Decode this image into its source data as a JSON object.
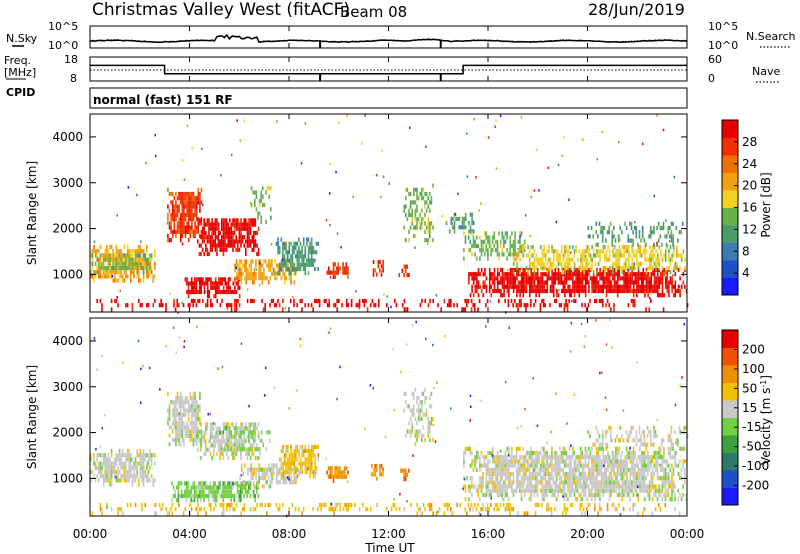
{
  "header": {
    "title": "Christmas Valley West (fitACF)",
    "beam": "Beam 08",
    "date": "28/Jun/2019"
  },
  "labels": {
    "nsky": "N.Sky",
    "freq_line1": "Freq.",
    "freq_line2": "[MHz]",
    "cpid": "CPID",
    "nsearch": "N.Search",
    "nave": "Nave",
    "mode": "normal (fast) 151 RF",
    "noise_ticks_left": [
      "10^5",
      "10^0"
    ],
    "noise_ticks_right": [
      "10^5",
      "10^0"
    ],
    "freq_ticks": [
      "18",
      "8"
    ],
    "nave_ticks": [
      "60",
      "0"
    ]
  },
  "colors": {
    "power": [
      "#1a1aff",
      "#2050c8",
      "#3c7ab4",
      "#4a9a6a",
      "#6ab04a",
      "#f0d020",
      "#f0a010",
      "#f07000",
      "#f03000",
      "#e80000"
    ],
    "velocity": [
      "#1a1aff",
      "#2050c8",
      "#2c7a6a",
      "#3aa040",
      "#70d040",
      "#c8c8c8",
      "#f0c000",
      "#f09000",
      "#f05000",
      "#e80000"
    ],
    "ground": "#c8c8c8"
  },
  "chart_data": [
    {
      "type": "line",
      "panel": "noise",
      "series": [
        {
          "name": "N.Sky",
          "style": "solid"
        },
        {
          "name": "N.Search",
          "style": "dotted"
        }
      ],
      "x": [
        "00:00",
        "04:00",
        "08:00",
        "12:00",
        "16:00",
        "20:00",
        "00:00"
      ],
      "ylim_labels": [
        "10^0",
        "10^5"
      ]
    },
    {
      "type": "line",
      "panel": "frequency_nave",
      "xh": [
        0,
        3,
        3,
        9.2,
        9.2,
        14,
        14,
        15,
        15,
        24
      ],
      "freq_mhz": [
        14.5,
        14.5,
        11,
        11,
        11,
        11,
        11,
        11,
        14.5,
        14.5
      ],
      "freq_ylim": [
        8,
        18
      ],
      "nave_ylim": [
        0,
        60
      ]
    },
    {
      "type": "heatmap",
      "panel": "power",
      "xlabel": "",
      "ylabel": "Slant Range [km]",
      "yticks": [
        1000,
        2000,
        3000,
        4000
      ],
      "ylim": [
        180,
        4500
      ],
      "xlim_hours": [
        0,
        24
      ],
      "colorbar_label": "Power [dB]",
      "colorbar_ticks": [
        "4",
        "8",
        "12",
        "16",
        "20",
        "24",
        "28"
      ],
      "regions": [
        {
          "t0": 0.0,
          "t1": 2.6,
          "r0": 820,
          "r1": 1560,
          "level": 6,
          "density": 0.82
        },
        {
          "t0": 0.0,
          "t1": 2.6,
          "r0": 1000,
          "r1": 1400,
          "level": 4,
          "density": 0.6
        },
        {
          "t0": 3.1,
          "t1": 4.5,
          "r0": 1700,
          "r1": 2800,
          "level": 8,
          "density": 0.85
        },
        {
          "t0": 4.3,
          "t1": 6.8,
          "r0": 1400,
          "r1": 2200,
          "level": 9,
          "density": 0.8
        },
        {
          "t0": 6.4,
          "t1": 7.3,
          "r0": 2100,
          "r1": 3000,
          "level": 4,
          "density": 0.3
        },
        {
          "t0": 3.8,
          "t1": 6.0,
          "r0": 480,
          "r1": 900,
          "level": 9,
          "density": 0.8
        },
        {
          "t0": 5.8,
          "t1": 8.3,
          "r0": 780,
          "r1": 1300,
          "level": 6,
          "density": 0.75
        },
        {
          "t0": 7.4,
          "t1": 9.2,
          "r0": 980,
          "r1": 1720,
          "level": 3,
          "density": 0.7
        },
        {
          "t0": 9.5,
          "t1": 10.4,
          "r0": 900,
          "r1": 1250,
          "level": 8,
          "density": 0.7
        },
        {
          "t0": 11.3,
          "t1": 11.8,
          "r0": 950,
          "r1": 1300,
          "level": 8,
          "density": 0.7
        },
        {
          "t0": 12.4,
          "t1": 12.8,
          "r0": 940,
          "r1": 1160,
          "level": 8,
          "density": 0.6
        },
        {
          "t0": 12.6,
          "t1": 13.8,
          "r0": 1700,
          "r1": 2900,
          "level": 4,
          "density": 0.4
        },
        {
          "t0": 14.3,
          "t1": 15.5,
          "r0": 1800,
          "r1": 2300,
          "level": 3,
          "density": 0.5
        },
        {
          "t0": 15.0,
          "t1": 17.5,
          "r0": 1300,
          "r1": 1900,
          "level": 4,
          "density": 0.55
        },
        {
          "t0": 15.2,
          "t1": 24.0,
          "r0": 500,
          "r1": 1100,
          "level": 9,
          "density": 0.85
        },
        {
          "t0": 17.0,
          "t1": 24.0,
          "r0": 1000,
          "r1": 1600,
          "level": 5,
          "density": 0.6
        },
        {
          "t0": 20.0,
          "t1": 24.0,
          "r0": 1600,
          "r1": 2100,
          "level": 3,
          "density": 0.35
        },
        {
          "t0": 0.0,
          "t1": 24.0,
          "r0": 190,
          "r1": 440,
          "level": 9,
          "density": 0.3
        }
      ]
    },
    {
      "type": "heatmap",
      "panel": "velocity",
      "xlabel": "Time UT",
      "ylabel": "Slant Range [km]",
      "yticks": [
        1000,
        2000,
        3000,
        4000
      ],
      "ylim": [
        180,
        4500
      ],
      "xlim_hours": [
        0,
        24
      ],
      "xticks": [
        "00:00",
        "04:00",
        "08:00",
        "12:00",
        "16:00",
        "20:00",
        "00:00"
      ],
      "colorbar_label": "Velocity [m s^-1]",
      "colorbar_ticks": [
        "200",
        "100",
        "50",
        "15",
        "-15",
        "-50",
        "-100",
        "-200"
      ],
      "regions": [
        {
          "t0": 0.0,
          "t1": 2.6,
          "r0": 820,
          "r1": 1560,
          "level": 5,
          "density": 0.82
        },
        {
          "t0": 3.1,
          "t1": 4.5,
          "r0": 1700,
          "r1": 2800,
          "level": 5,
          "density": 0.85
        },
        {
          "t0": 4.3,
          "t1": 6.8,
          "r0": 1400,
          "r1": 2200,
          "level": 5,
          "density": 0.75
        },
        {
          "t0": 5.2,
          "t1": 7.2,
          "r0": 1500,
          "r1": 2100,
          "level": 4,
          "density": 0.35
        },
        {
          "t0": 3.2,
          "t1": 6.8,
          "r0": 480,
          "r1": 880,
          "level": 4,
          "density": 0.85
        },
        {
          "t0": 6.0,
          "t1": 8.4,
          "r0": 780,
          "r1": 1250,
          "level": 5,
          "density": 0.7
        },
        {
          "t0": 7.6,
          "t1": 9.2,
          "r0": 1000,
          "r1": 1720,
          "level": 6,
          "density": 0.7
        },
        {
          "t0": 9.5,
          "t1": 10.4,
          "r0": 900,
          "r1": 1250,
          "level": 7,
          "density": 0.75
        },
        {
          "t0": 11.3,
          "t1": 11.8,
          "r0": 950,
          "r1": 1300,
          "level": 7,
          "density": 0.7
        },
        {
          "t0": 12.4,
          "t1": 12.8,
          "r0": 940,
          "r1": 1160,
          "level": 7,
          "density": 0.6
        },
        {
          "t0": 12.6,
          "t1": 13.8,
          "r0": 1700,
          "r1": 2900,
          "level": 5,
          "density": 0.4
        },
        {
          "t0": 15.0,
          "t1": 24.0,
          "r0": 500,
          "r1": 1600,
          "level": 5,
          "density": 0.85
        },
        {
          "t0": 20.0,
          "t1": 24.0,
          "r0": 1600,
          "r1": 2100,
          "level": 5,
          "density": 0.35
        },
        {
          "t0": 0.0,
          "t1": 24.0,
          "r0": 190,
          "r1": 440,
          "level": 6,
          "density": 0.3
        }
      ]
    }
  ]
}
